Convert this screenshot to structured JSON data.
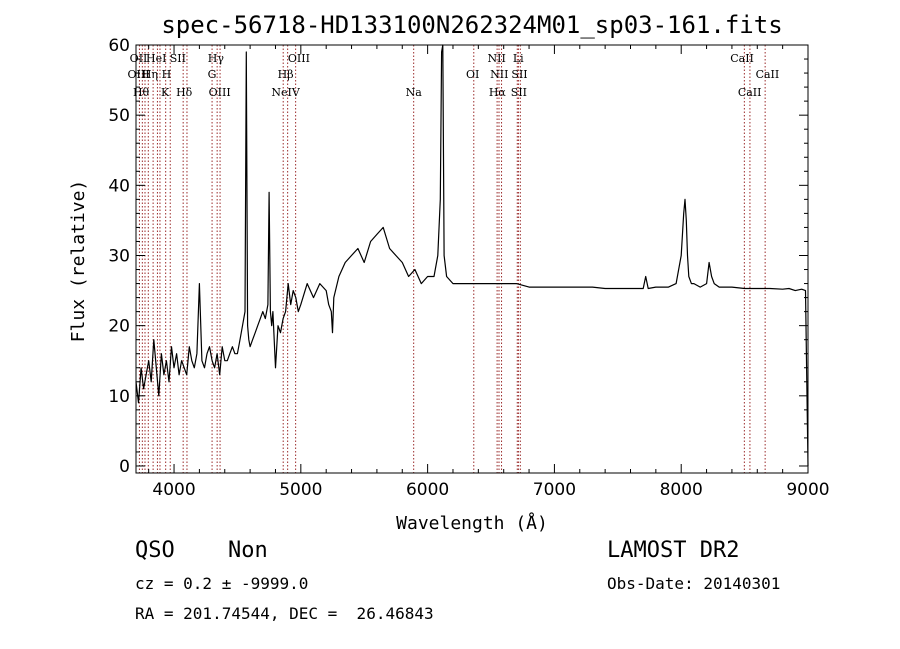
{
  "chart_data": {
    "type": "line",
    "title": "spec-56718-HD133100N262324M01_sp03-161.fits",
    "xlabel": "Wavelength (Å)",
    "ylabel": "Flux (relative)",
    "xlim": [
      3700,
      9000
    ],
    "ylim": [
      -1,
      60
    ],
    "x_ticks": [
      4000,
      5000,
      6000,
      7000,
      8000,
      9000
    ],
    "y_ticks": [
      0,
      10,
      20,
      30,
      40,
      50,
      60
    ],
    "grid": false,
    "series": [
      {
        "x": [
          3700,
          3720,
          3740,
          3760,
          3780,
          3800,
          3820,
          3840,
          3860,
          3880,
          3900,
          3920,
          3940,
          3960,
          3980,
          4000,
          4020,
          4040,
          4060,
          4080,
          4100,
          4120,
          4140,
          4160,
          4180,
          4200,
          4220,
          4240,
          4260,
          4280,
          4300,
          4320,
          4340,
          4360,
          4380,
          4400,
          4420,
          4440,
          4460,
          4480,
          4500,
          4520,
          4540,
          4560,
          4570,
          4580,
          4590,
          4600,
          4620,
          4640,
          4660,
          4680,
          4700,
          4720,
          4740,
          4750,
          4760,
          4770,
          4780,
          4800,
          4820,
          4840,
          4860,
          4880,
          4900,
          4920,
          4940,
          4960,
          4980,
          5000,
          5050,
          5100,
          5150,
          5200,
          5220,
          5240,
          5250,
          5260,
          5300,
          5350,
          5400,
          5450,
          5500,
          5550,
          5600,
          5650,
          5700,
          5750,
          5800,
          5850,
          5900,
          5950,
          6000,
          6050,
          6080,
          6100,
          6110,
          6120,
          6130,
          6150,
          6200,
          6300,
          6400,
          6500,
          6600,
          6700,
          6800,
          6900,
          7000,
          7100,
          7200,
          7300,
          7400,
          7500,
          7600,
          7700,
          7720,
          7740,
          7800,
          7900,
          7960,
          8000,
          8020,
          8030,
          8040,
          8050,
          8060,
          8080,
          8100,
          8150,
          8200,
          8220,
          8240,
          8260,
          8300,
          8400,
          8500,
          8600,
          8700,
          8800,
          8850,
          8900,
          8950,
          8980,
          9000
        ],
        "y": [
          12,
          9,
          14,
          11,
          13,
          15,
          12,
          18,
          14,
          10,
          16,
          13,
          15,
          12,
          17,
          14,
          16,
          13,
          15,
          14,
          13,
          17,
          15,
          14,
          16,
          26,
          15,
          14,
          16,
          17,
          15,
          14,
          16,
          13,
          17,
          15,
          15,
          16,
          17,
          16,
          16,
          18,
          20,
          22,
          59,
          20,
          18,
          17,
          18,
          19,
          20,
          21,
          22,
          21,
          23,
          39,
          22,
          20,
          22,
          14,
          20,
          19,
          21,
          22,
          26,
          23,
          25,
          24,
          22,
          23,
          26,
          24,
          26,
          25,
          23,
          22,
          19,
          24,
          27,
          29,
          30,
          31,
          29,
          32,
          33,
          34,
          31,
          30,
          29,
          27,
          28,
          26,
          27,
          27,
          30,
          38,
          59,
          60,
          30,
          27,
          26,
          26,
          26,
          26,
          26,
          26,
          25.5,
          25.5,
          25.5,
          25.5,
          25.5,
          25.5,
          25.3,
          25.3,
          25.3,
          25.3,
          27,
          25.3,
          25.5,
          25.5,
          26,
          30,
          36,
          38,
          35,
          30,
          27,
          26,
          26,
          25.5,
          26,
          29,
          27,
          26,
          25.5,
          25.5,
          25.3,
          25.3,
          25.3,
          25.2,
          25.3,
          25,
          25.2,
          25,
          0
        ]
      }
    ],
    "line_markers": [
      {
        "x": 3727,
        "label": "OII"
      },
      {
        "x": 3750,
        "label": "Hθ"
      },
      {
        "x": 3771,
        "label": "Hθ"
      },
      {
        "x": 3797,
        "label": "Hη"
      },
      {
        "x": 3835,
        "label": "Hη"
      },
      {
        "x": 3869,
        "label": "HeI"
      },
      {
        "x": 3889,
        "label": "HeI"
      },
      {
        "x": 3934,
        "label": "K"
      },
      {
        "x": 3970,
        "label": "H"
      },
      {
        "x": 4072,
        "label": "SII"
      },
      {
        "x": 4102,
        "label": "Hδ"
      },
      {
        "x": 4300,
        "label": "G"
      },
      {
        "x": 4340,
        "label": "Hγ"
      },
      {
        "x": 4363,
        "label": "OIII"
      },
      {
        "x": 4861,
        "label": "Hβ"
      },
      {
        "x": 4896,
        "label": "NeIV"
      },
      {
        "x": 4959,
        "label": "OIII"
      },
      {
        "x": 5890,
        "label": "Na"
      },
      {
        "x": 6364,
        "label": "OI"
      },
      {
        "x": 6548,
        "label": "NII"
      },
      {
        "x": 6563,
        "label": "Hα"
      },
      {
        "x": 6583,
        "label": "NII"
      },
      {
        "x": 6707,
        "label": "Li"
      },
      {
        "x": 6716,
        "label": "SII"
      },
      {
        "x": 6731,
        "label": "SII"
      },
      {
        "x": 8498,
        "label": "CaII"
      },
      {
        "x": 8542,
        "label": "CaII"
      },
      {
        "x": 8662,
        "label": "CaII"
      }
    ],
    "marker_labels": [
      {
        "text": "OII",
        "x": 3720,
        "row": 0
      },
      {
        "text": "HeI",
        "x": 3860,
        "row": 0
      },
      {
        "text": "SII",
        "x": 4030,
        "row": 0
      },
      {
        "text": "Hγ",
        "x": 4330,
        "row": 0
      },
      {
        "text": "OIII",
        "x": 4985,
        "row": 0
      },
      {
        "text": "NII",
        "x": 6545,
        "row": 0
      },
      {
        "text": "Li",
        "x": 6715,
        "row": 0
      },
      {
        "text": "CaII",
        "x": 8480,
        "row": 0
      },
      {
        "text": "OIII",
        "x": 3720,
        "row": 1
      },
      {
        "text": "Hη",
        "x": 3810,
        "row": 1
      },
      {
        "text": "H",
        "x": 3940,
        "row": 1
      },
      {
        "text": "G",
        "x": 4300,
        "row": 1
      },
      {
        "text": "Hβ",
        "x": 4880,
        "row": 1
      },
      {
        "text": "OI",
        "x": 6355,
        "row": 1
      },
      {
        "text": "NII",
        "x": 6565,
        "row": 1
      },
      {
        "text": "SII",
        "x": 6725,
        "row": 1
      },
      {
        "text": "CaII",
        "x": 8680,
        "row": 1
      },
      {
        "text": "Hθ",
        "x": 3740,
        "row": 2
      },
      {
        "text": "K",
        "x": 3930,
        "row": 2
      },
      {
        "text": "Hδ",
        "x": 4080,
        "row": 2
      },
      {
        "text": "OIII",
        "x": 4360,
        "row": 2
      },
      {
        "text": "NeIV",
        "x": 4880,
        "row": 2
      },
      {
        "text": "Na",
        "x": 5890,
        "row": 2
      },
      {
        "text": "Hα",
        "x": 6550,
        "row": 2
      },
      {
        "text": "SII",
        "x": 6720,
        "row": 2
      },
      {
        "text": "CaII",
        "x": 8540,
        "row": 2
      }
    ]
  },
  "info": {
    "classification": "QSO",
    "subclass": "Non",
    "cz": "cz = 0.2 ± -9999.0",
    "coords": "RA = 201.74544, DEC =  26.46843",
    "survey": "LAMOST DR2",
    "obs_date": "Obs-Date: 20140301"
  },
  "colors": {
    "axis": "#000000",
    "spectrum": "#000000",
    "marker_line": "#9b2c2c"
  }
}
